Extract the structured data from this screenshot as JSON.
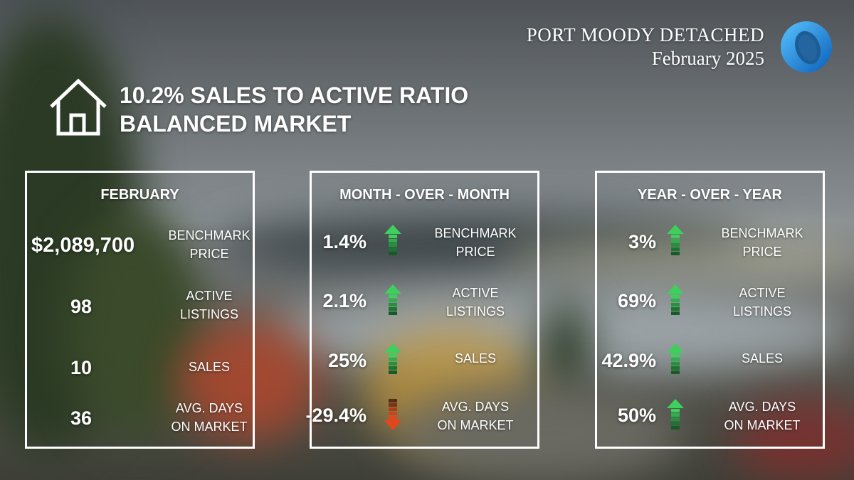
{
  "header": {
    "brand_title": "PORT MOODY DETACHED",
    "brand_date": "February 2025",
    "headline_line1": "10.2% SALES TO ACTIVE RATIO",
    "headline_line2": "BALANCED MARKET"
  },
  "labels": {
    "benchmark_1": "BENCHMARK",
    "benchmark_2": "PRICE",
    "active_1": "ACTIVE",
    "active_2": "LISTINGS",
    "sales": "SALES",
    "days_1": "AVG. DAYS",
    "days_2": "ON MARKET"
  },
  "panels": {
    "february": {
      "title": "FEBRUARY",
      "benchmark": "$2,089,700",
      "active": "98",
      "sales": "10",
      "days": "36"
    },
    "mom": {
      "title": "MONTH - OVER - MONTH",
      "benchmark": "1.4%",
      "active": "2.1%",
      "sales": "25%",
      "days": "-29.4%",
      "directions": [
        "up",
        "up",
        "up",
        "down"
      ]
    },
    "yoy": {
      "title": "YEAR - OVER - YEAR",
      "benchmark": "3%",
      "active": "69%",
      "sales": "42.9%",
      "days": "50%",
      "directions": [
        "up",
        "up",
        "up",
        "up"
      ]
    }
  },
  "colors": {
    "up_arrow": "#3ecf5c",
    "down_arrow": "#e8441c",
    "logo_blue": "#1e8fe0"
  }
}
